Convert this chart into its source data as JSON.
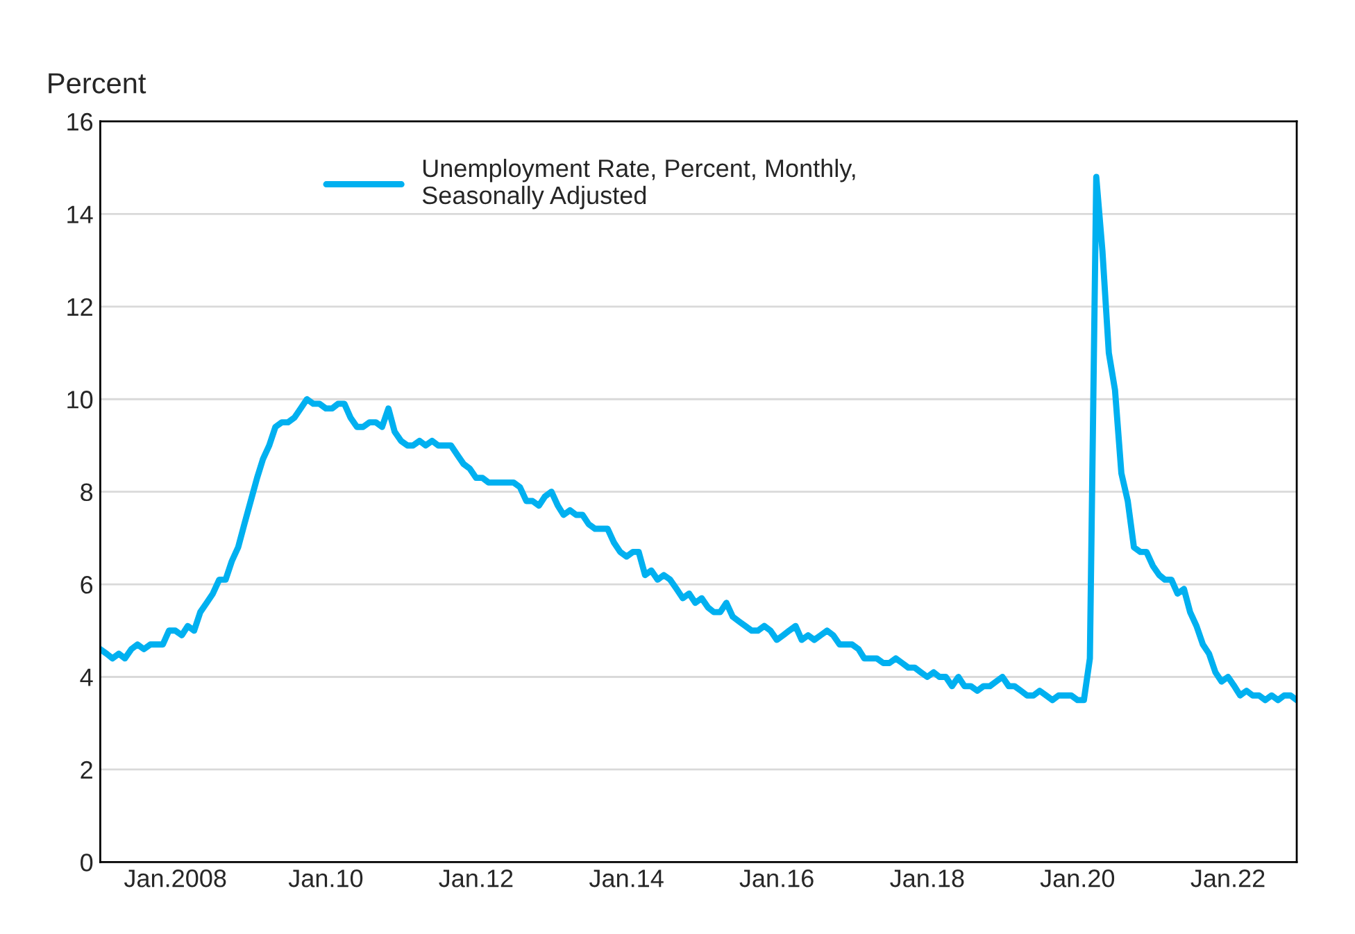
{
  "chart_data": {
    "type": "line",
    "ylabel": "Percent",
    "x": [
      "2007-01",
      "2007-02",
      "2007-03",
      "2007-04",
      "2007-05",
      "2007-06",
      "2007-07",
      "2007-08",
      "2007-09",
      "2007-10",
      "2007-11",
      "2007-12",
      "2008-01",
      "2008-02",
      "2008-03",
      "2008-04",
      "2008-05",
      "2008-06",
      "2008-07",
      "2008-08",
      "2008-09",
      "2008-10",
      "2008-11",
      "2008-12",
      "2009-01",
      "2009-02",
      "2009-03",
      "2009-04",
      "2009-05",
      "2009-06",
      "2009-07",
      "2009-08",
      "2009-09",
      "2009-10",
      "2009-11",
      "2009-12",
      "2010-01",
      "2010-02",
      "2010-03",
      "2010-04",
      "2010-05",
      "2010-06",
      "2010-07",
      "2010-08",
      "2010-09",
      "2010-10",
      "2010-11",
      "2010-12",
      "2011-01",
      "2011-02",
      "2011-03",
      "2011-04",
      "2011-05",
      "2011-06",
      "2011-07",
      "2011-08",
      "2011-09",
      "2011-10",
      "2011-11",
      "2011-12",
      "2012-01",
      "2012-02",
      "2012-03",
      "2012-04",
      "2012-05",
      "2012-06",
      "2012-07",
      "2012-08",
      "2012-09",
      "2012-10",
      "2012-11",
      "2012-12",
      "2013-01",
      "2013-02",
      "2013-03",
      "2013-04",
      "2013-05",
      "2013-06",
      "2013-07",
      "2013-08",
      "2013-09",
      "2013-10",
      "2013-11",
      "2013-12",
      "2014-01",
      "2014-02",
      "2014-03",
      "2014-04",
      "2014-05",
      "2014-06",
      "2014-07",
      "2014-08",
      "2014-09",
      "2014-10",
      "2014-11",
      "2014-12",
      "2015-01",
      "2015-02",
      "2015-03",
      "2015-04",
      "2015-05",
      "2015-06",
      "2015-07",
      "2015-08",
      "2015-09",
      "2015-10",
      "2015-11",
      "2015-12",
      "2016-01",
      "2016-02",
      "2016-03",
      "2016-04",
      "2016-05",
      "2016-06",
      "2016-07",
      "2016-08",
      "2016-09",
      "2016-10",
      "2016-11",
      "2016-12",
      "2017-01",
      "2017-02",
      "2017-03",
      "2017-04",
      "2017-05",
      "2017-06",
      "2017-07",
      "2017-08",
      "2017-09",
      "2017-10",
      "2017-11",
      "2017-12",
      "2018-01",
      "2018-02",
      "2018-03",
      "2018-04",
      "2018-05",
      "2018-06",
      "2018-07",
      "2018-08",
      "2018-09",
      "2018-10",
      "2018-11",
      "2018-12",
      "2019-01",
      "2019-02",
      "2019-03",
      "2019-04",
      "2019-05",
      "2019-06",
      "2019-07",
      "2019-08",
      "2019-09",
      "2019-10",
      "2019-11",
      "2019-12",
      "2020-01",
      "2020-02",
      "2020-03",
      "2020-04",
      "2020-05",
      "2020-06",
      "2020-07",
      "2020-08",
      "2020-09",
      "2020-10",
      "2020-11",
      "2020-12",
      "2021-01",
      "2021-02",
      "2021-03",
      "2021-04",
      "2021-05",
      "2021-06",
      "2021-07",
      "2021-08",
      "2021-09",
      "2021-10",
      "2021-11",
      "2021-12",
      "2022-01",
      "2022-02",
      "2022-03",
      "2022-04",
      "2022-05",
      "2022-06",
      "2022-07",
      "2022-08",
      "2022-09",
      "2022-10",
      "2022-11",
      "2022-12"
    ],
    "xlim": [
      "2007-01",
      "2022-12"
    ],
    "xticks": [
      {
        "value": "2008-01",
        "label": "Jan.2008"
      },
      {
        "value": "2010-01",
        "label": "Jan.10"
      },
      {
        "value": "2012-01",
        "label": "Jan.12"
      },
      {
        "value": "2014-01",
        "label": "Jan.14"
      },
      {
        "value": "2016-01",
        "label": "Jan.16"
      },
      {
        "value": "2018-01",
        "label": "Jan.18"
      },
      {
        "value": "2020-01",
        "label": "Jan.20"
      },
      {
        "value": "2022-01",
        "label": "Jan.22"
      }
    ],
    "ylim": [
      0,
      16
    ],
    "yticks": [
      0,
      2,
      4,
      6,
      8,
      10,
      12,
      14,
      16
    ],
    "grid": "y",
    "legend": "top left",
    "line_style": "solid",
    "marker": "none",
    "series": [
      {
        "name": "Unemployment Rate, Percent, Monthly,\nSeasonally Adjusted",
        "color": "#00b0f0",
        "values": [
          4.6,
          4.5,
          4.4,
          4.5,
          4.4,
          4.6,
          4.7,
          4.6,
          4.7,
          4.7,
          4.7,
          5.0,
          5.0,
          4.9,
          5.1,
          5.0,
          5.4,
          5.6,
          5.8,
          6.1,
          6.1,
          6.5,
          6.8,
          7.3,
          7.8,
          8.3,
          8.7,
          9.0,
          9.4,
          9.5,
          9.5,
          9.6,
          9.8,
          10.0,
          9.9,
          9.9,
          9.8,
          9.8,
          9.9,
          9.9,
          9.6,
          9.4,
          9.4,
          9.5,
          9.5,
          9.4,
          9.8,
          9.3,
          9.1,
          9.0,
          9.0,
          9.1,
          9.0,
          9.1,
          9.0,
          9.0,
          9.0,
          8.8,
          8.6,
          8.5,
          8.3,
          8.3,
          8.2,
          8.2,
          8.2,
          8.2,
          8.2,
          8.1,
          7.8,
          7.8,
          7.7,
          7.9,
          8.0,
          7.7,
          7.5,
          7.6,
          7.5,
          7.5,
          7.3,
          7.2,
          7.2,
          7.2,
          6.9,
          6.7,
          6.6,
          6.7,
          6.7,
          6.2,
          6.3,
          6.1,
          6.2,
          6.1,
          5.9,
          5.7,
          5.8,
          5.6,
          5.7,
          5.5,
          5.4,
          5.4,
          5.6,
          5.3,
          5.2,
          5.1,
          5.0,
          5.0,
          5.1,
          5.0,
          4.8,
          4.9,
          5.0,
          5.1,
          4.8,
          4.9,
          4.8,
          4.9,
          5.0,
          4.9,
          4.7,
          4.7,
          4.7,
          4.6,
          4.4,
          4.4,
          4.4,
          4.3,
          4.3,
          4.4,
          4.3,
          4.2,
          4.2,
          4.1,
          4.0,
          4.1,
          4.0,
          4.0,
          3.8,
          4.0,
          3.8,
          3.8,
          3.7,
          3.8,
          3.8,
          3.9,
          4.0,
          3.8,
          3.8,
          3.7,
          3.6,
          3.6,
          3.7,
          3.6,
          3.5,
          3.6,
          3.6,
          3.6,
          3.5,
          3.5,
          4.4,
          14.8,
          13.2,
          11.0,
          10.2,
          8.4,
          7.8,
          6.8,
          6.7,
          6.7,
          6.4,
          6.2,
          6.1,
          6.1,
          5.8,
          5.9,
          5.4,
          5.1,
          4.7,
          4.5,
          4.1,
          3.9,
          4.0,
          3.8,
          3.6,
          3.7,
          3.6,
          3.6,
          3.5,
          3.6,
          3.5,
          3.6,
          3.6,
          3.5
        ]
      }
    ]
  }
}
